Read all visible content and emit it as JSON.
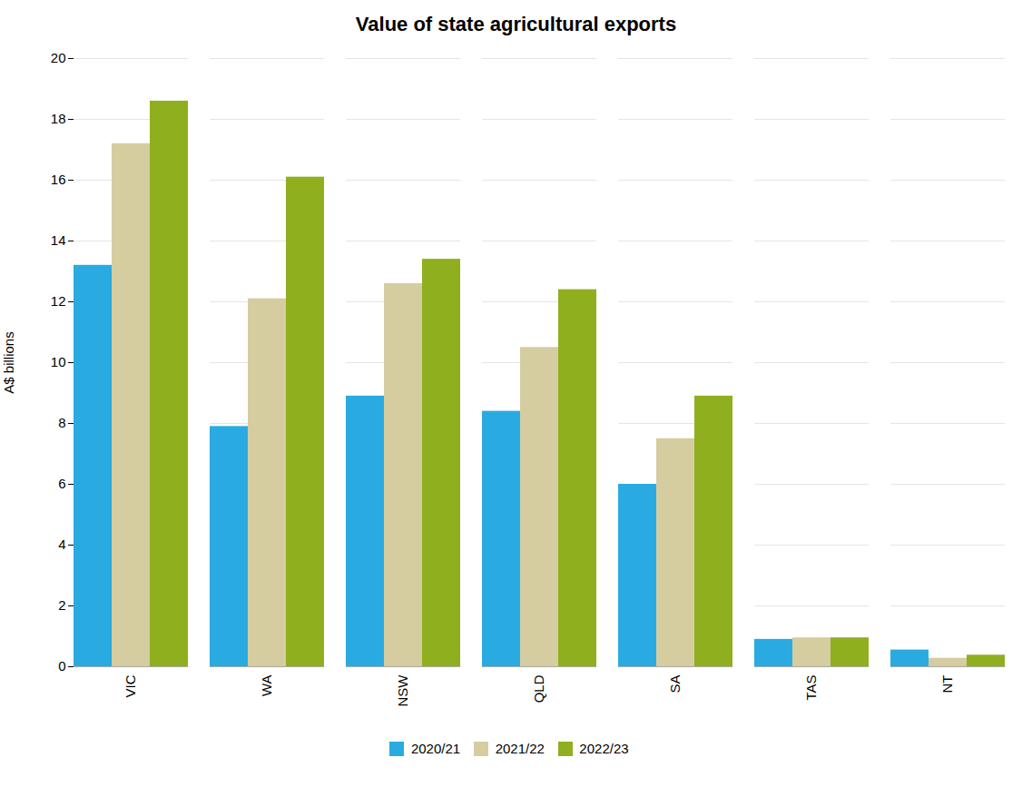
{
  "chart_data": {
    "type": "bar",
    "title": "Value of state agricultural exports",
    "ylabel": "A$ billions",
    "categories": [
      "VIC",
      "WA",
      "NSW",
      "QLD",
      "SA",
      "TAS",
      "NT"
    ],
    "series": [
      {
        "name": "2020/21",
        "color": "#29ABE2",
        "values": [
          13.2,
          7.9,
          8.9,
          8.4,
          6.0,
          0.9,
          0.55
        ]
      },
      {
        "name": "2021/22",
        "color": "#D5CDA0",
        "values": [
          17.2,
          12.1,
          12.6,
          10.5,
          7.5,
          0.95,
          0.28
        ]
      },
      {
        "name": "2022/23",
        "color": "#8FAF1E",
        "values": [
          18.6,
          16.1,
          13.4,
          12.4,
          8.9,
          0.95,
          0.38
        ]
      }
    ],
    "ylim": [
      0,
      20
    ],
    "yticks": [
      0,
      2,
      4,
      6,
      8,
      10,
      12,
      14,
      16,
      18,
      20
    ],
    "grid": true,
    "legend": "bottom"
  }
}
